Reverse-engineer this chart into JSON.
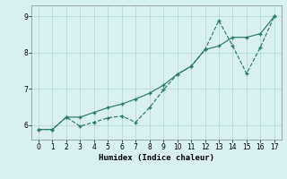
{
  "xlabel": "Humidex (Indice chaleur)",
  "x": [
    0,
    1,
    2,
    3,
    4,
    5,
    6,
    7,
    8,
    9,
    10,
    11,
    12,
    13,
    14,
    15,
    16,
    17
  ],
  "line_jagged": [
    5.88,
    5.88,
    6.22,
    5.97,
    6.08,
    6.2,
    6.25,
    6.08,
    6.48,
    6.97,
    7.4,
    7.62,
    8.08,
    8.88,
    8.18,
    7.42,
    8.15,
    9.0
  ],
  "line_trend": [
    5.88,
    5.88,
    6.22,
    6.22,
    6.35,
    6.48,
    6.58,
    6.72,
    6.88,
    7.1,
    7.4,
    7.62,
    8.08,
    8.18,
    8.42,
    8.42,
    8.52,
    9.0
  ],
  "line_color": "#2a7a6a",
  "bg_color": "#d8f0f0",
  "grid_color": "#b0d5d5",
  "ylim": [
    5.6,
    9.3
  ],
  "xlim": [
    -0.5,
    17.5
  ],
  "yticks": [
    6,
    7,
    8,
    9
  ],
  "xticks": [
    0,
    1,
    2,
    3,
    4,
    5,
    6,
    7,
    8,
    9,
    10,
    11,
    12,
    13,
    14,
    15,
    16,
    17
  ]
}
